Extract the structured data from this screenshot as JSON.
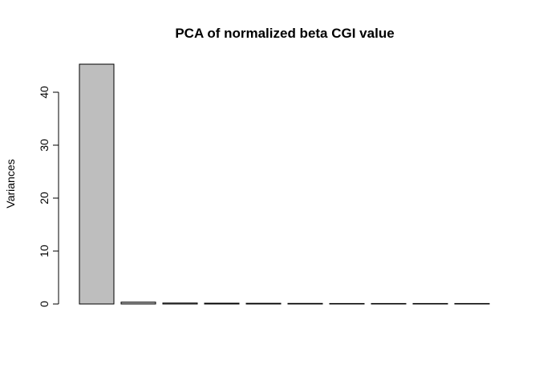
{
  "chart_data": {
    "type": "bar",
    "title": "PCA of normalized beta CGI value",
    "xlabel": "",
    "ylabel": "Variances",
    "y_ticks": [
      0,
      10,
      20,
      30,
      40
    ],
    "ylim": [
      0,
      47
    ],
    "bar_fill": "#bebebe",
    "bar_stroke": "#000000",
    "categories": [
      "",
      "",
      "",
      "",
      "",
      "",
      "",
      "",
      "",
      ""
    ],
    "values": [
      45.3,
      0.35,
      0.18,
      0.15,
      0.13,
      0.11,
      0.07,
      0.05,
      0.04,
      0.03
    ],
    "grid": false,
    "legend": "none"
  }
}
